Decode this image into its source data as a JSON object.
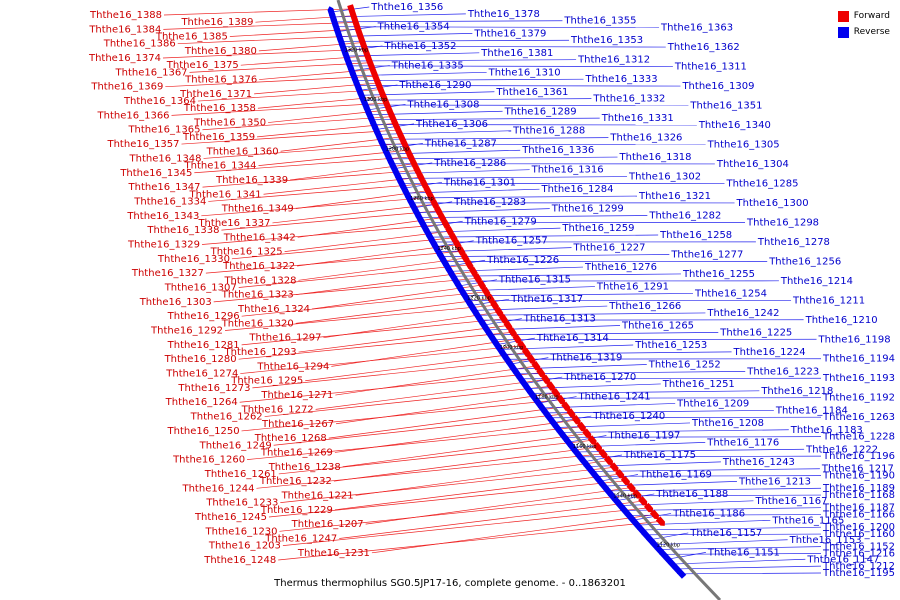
{
  "legend": {
    "forward_label": "Forward",
    "reverse_label": "Reverse",
    "forward_color": "#ee0000",
    "reverse_color": "#0000ee"
  },
  "caption": "Thermus thermophilus SG0.5JP17-16, complete genome. - 0..1863201",
  "ticks": [
    "1320 kbp",
    "1300 kbp",
    "1280 kbp",
    "1260 kbp",
    "1240 kbp",
    "1220 kbp",
    "1200 kbp",
    "1180 kbp",
    "1160 kbp",
    "1140 kbp",
    "1120 kbp"
  ],
  "forward_genes": [
    "Ththe16_1388",
    "Ththe16_1389",
    "Ththe16_1384",
    "Ththe16_1385",
    "Ththe16_1386",
    "Ththe16_1380",
    "Ththe16_1374",
    "Ththe16_1375",
    "Ththe16_1367",
    "Ththe16_1376",
    "Ththe16_1369",
    "Ththe16_1371",
    "Ththe16_1364",
    "Ththe16_1358",
    "Ththe16_1366",
    "Ththe16_1350",
    "Ththe16_1365",
    "Ththe16_1359",
    "Ththe16_1357",
    "Ththe16_1360",
    "Ththe16_1348",
    "Ththe16_1344",
    "Ththe16_1345",
    "Ththe16_1339",
    "Ththe16_1347",
    "Ththe16_1341",
    "Ththe16_1334",
    "Ththe16_1349",
    "Ththe16_1343",
    "Ththe16_1337",
    "Ththe16_1338",
    "Ththe16_1342",
    "Ththe16_1329",
    "Ththe16_1325",
    "Ththe16_1330",
    "Ththe16_1322",
    "Ththe16_1327",
    "Ththe16_1328",
    "Ththe16_1307",
    "Ththe16_1323",
    "Ththe16_1303",
    "Ththe16_1324",
    "Ththe16_1296",
    "Ththe16_1320",
    "Ththe16_1292",
    "Ththe16_1297",
    "Ththe16_1281",
    "Ththe16_1293",
    "Ththe16_1280",
    "Ththe16_1294",
    "Ththe16_1274",
    "Ththe16_1295",
    "Ththe16_1273",
    "Ththe16_1271",
    "Ththe16_1264",
    "Ththe16_1272",
    "Ththe16_1262",
    "Ththe16_1267",
    "Ththe16_1250",
    "Ththe16_1268",
    "Ththe16_1249",
    "Ththe16_1269",
    "Ththe16_1260",
    "Ththe16_1238",
    "Ththe16_1261",
    "Ththe16_1232",
    "Ththe16_1244",
    "Ththe16_1221",
    "Ththe16_1233",
    "Ththe16_1229",
    "Ththe16_1245",
    "Ththe16_1207",
    "Ththe16_1230",
    "Ththe16_1247",
    "Ththe16_1203",
    "Ththe16_1231",
    "Ththe16_1248"
  ],
  "reverse_genes": [
    "Ththe16_1356",
    "Ththe16_1378",
    "Ththe16_1355",
    "Ththe16_1363",
    "Ththe16_1354",
    "Ththe16_1379",
    "Ththe16_1353",
    "Ththe16_1362",
    "Ththe16_1352",
    "Ththe16_1381",
    "Ththe16_1312",
    "Ththe16_1311",
    "Ththe16_1335",
    "Ththe16_1310",
    "Ththe16_1333",
    "Ththe16_1309",
    "Ththe16_1290",
    "Ththe16_1361",
    "Ththe16_1332",
    "Ththe16_1351",
    "Ththe16_1308",
    "Ththe16_1289",
    "Ththe16_1331",
    "Ththe16_1340",
    "Ththe16_1306",
    "Ththe16_1288",
    "Ththe16_1326",
    "Ththe16_1305",
    "Ththe16_1287",
    "Ththe16_1336",
    "Ththe16_1318",
    "Ththe16_1304",
    "Ththe16_1286",
    "Ththe16_1316",
    "Ththe16_1302",
    "Ththe16_1285",
    "Ththe16_1301",
    "Ththe16_1284",
    "Ththe16_1321",
    "Ththe16_1300",
    "Ththe16_1283",
    "Ththe16_1299",
    "Ththe16_1282",
    "Ththe16_1298",
    "Ththe16_1279",
    "Ththe16_1259",
    "Ththe16_1258",
    "Ththe16_1278",
    "Ththe16_1257",
    "Ththe16_1227",
    "Ththe16_1277",
    "Ththe16_1256",
    "Ththe16_1226",
    "Ththe16_1276",
    "Ththe16_1255",
    "Ththe16_1214",
    "Ththe16_1315",
    "Ththe16_1291",
    "Ththe16_1254",
    "Ththe16_1211",
    "Ththe16_1317",
    "Ththe16_1266",
    "Ththe16_1242",
    "Ththe16_1210",
    "Ththe16_1313",
    "Ththe16_1265",
    "Ththe16_1225",
    "Ththe16_1198",
    "Ththe16_1314",
    "Ththe16_1253",
    "Ththe16_1224",
    "Ththe16_1194",
    "Ththe16_1319",
    "Ththe16_1252",
    "Ththe16_1223",
    "Ththe16_1193",
    "Ththe16_1270",
    "Ththe16_1251",
    "Ththe16_1218",
    "Ththe16_1192",
    "Ththe16_1241",
    "Ththe16_1209",
    "Ththe16_1184",
    "Ththe16_1263",
    "Ththe16_1240",
    "Ththe16_1208",
    "Ththe16_1183",
    "Ththe16_1228",
    "Ththe16_1197",
    "Ththe16_1176",
    "Ththe16_1222",
    "Ththe16_1196",
    "Ththe16_1175",
    "Ththe16_1243",
    "Ththe16_1217",
    "Ththe16_1190",
    "Ththe16_1169",
    "Ththe16_1213",
    "Ththe16_1189",
    "Ththe16_1168",
    "Ththe16_1188",
    "Ththe16_1167",
    "Ththe16_1187",
    "Ththe16_1166",
    "Ththe16_1186",
    "Ththe16_1165",
    "Ththe16_1200",
    "Ththe16_1160",
    "Ththe16_1157",
    "Ththe16_1153",
    "Ththe16_1152",
    "Ththe16_1216",
    "Ththe16_1151",
    "Ththe16_1147",
    "Ththe16_1212",
    "Ththe16_1195"
  ]
}
